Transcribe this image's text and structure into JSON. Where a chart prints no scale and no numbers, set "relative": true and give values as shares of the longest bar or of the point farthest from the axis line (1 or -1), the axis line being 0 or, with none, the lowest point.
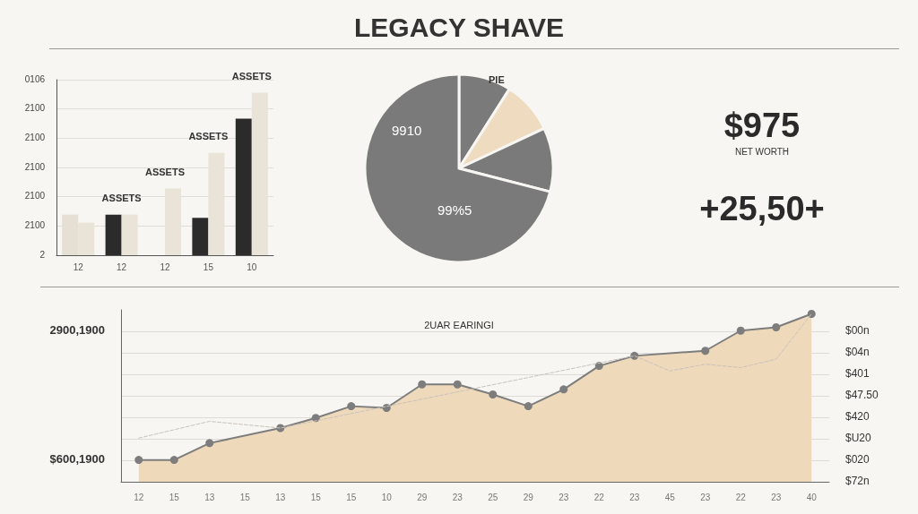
{
  "chart_data": [
    {
      "type": "other",
      "title": "LEGACY SHAVE"
    },
    {
      "type": "bar",
      "relative": true,
      "categories": [
        "12",
        "12",
        "12",
        "15",
        "10"
      ],
      "annotations": [
        "0106",
        "2100",
        "2100",
        "2100",
        "2100",
        "2100",
        "2",
        "ASSETS",
        "ASSETS",
        "ASSETS",
        "ASSETS"
      ],
      "grid": "y",
      "series": [
        {
          "values": [
            0.25,
            0.25,
            null,
            0.23,
            0.84
          ],
          "colors": [
            "#e6dfd3",
            "#2b2b2b",
            "#2b2b2b",
            "#2b2b2b",
            "#2b2b2b"
          ]
        },
        {
          "values": [
            0.2,
            0.25,
            0.41,
            0.63,
            1
          ],
          "color": "#e9e3d8"
        }
      ]
    },
    {
      "type": "pie",
      "title": "PIE",
      "categories": [
        null,
        null,
        null,
        null
      ],
      "values": [
        9,
        9,
        11,
        71
      ],
      "colors": [
        "#7a7a7a",
        "#efdcc0",
        "#7a7a7a",
        "#7a7a7a"
      ],
      "annotations": [
        "9910",
        "99%5"
      ]
    },
    {
      "type": "other",
      "annotations": [
        "$975",
        "NET WORTH",
        "+25,50+"
      ]
    },
    {
      "type": "area",
      "relative": true,
      "title": "2UAR EARINGI",
      "categories": [
        "12",
        "15",
        "13",
        "15",
        "13",
        "15",
        "15",
        "10",
        "29",
        "23",
        "25",
        "29",
        "23",
        "22",
        "23",
        "45",
        "23",
        "22",
        "23",
        "40"
      ],
      "annotations": [
        "2900,1900",
        "$600,1900",
        "$00n",
        "$04n",
        "$401",
        "$47.50",
        "$420",
        "$U20",
        "$020",
        "$72n"
      ],
      "grid": "y",
      "series": [
        {
          "type": "line",
          "color": "#c9c2ba",
          "line_style": "dashed",
          "marker": "none",
          "values": [
            0.26,
            null,
            0.36,
            null,
            0.32,
            null,
            null,
            null,
            null,
            null,
            null,
            null,
            null,
            null,
            0.75,
            0.66,
            0.7,
            0.68,
            0.73,
            1
          ]
        },
        {
          "type": "area",
          "color": "#efd9bb",
          "marker": "circle",
          "values": [
            0.13,
            0.13,
            0.23,
            null,
            0.32,
            0.38,
            0.45,
            0.44,
            0.58,
            0.58,
            0.52,
            0.45,
            0.55,
            0.69,
            0.75,
            null,
            0.78,
            0.9,
            0.92,
            1
          ]
        }
      ]
    }
  ]
}
